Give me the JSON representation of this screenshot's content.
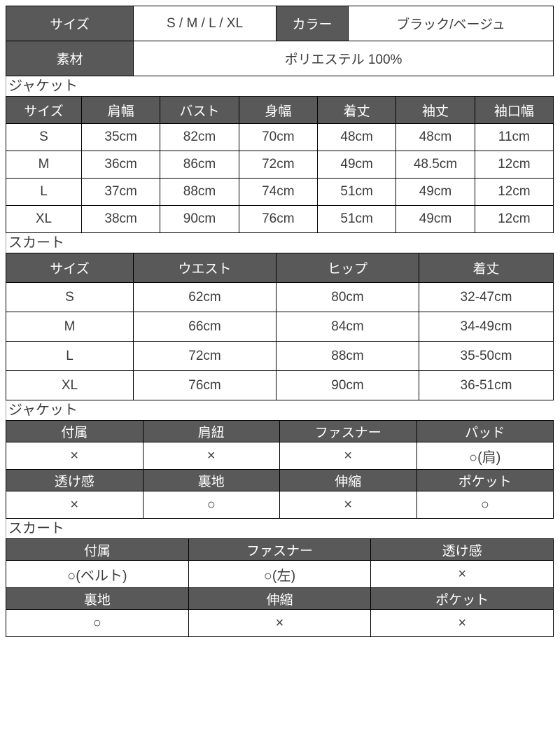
{
  "colors": {
    "header_bg": "#595959",
    "header_text": "#ffffff",
    "body_text": "#3c3c3c",
    "border": "#000000",
    "section_label_text": "#3c3c3c"
  },
  "info_table": {
    "rows": [
      [
        {
          "t": "サイズ",
          "h": true
        },
        {
          "t": "S / M / L / XL"
        },
        {
          "t": "カラー",
          "h": true
        },
        {
          "t": "ブラック/ベージュ"
        }
      ],
      [
        {
          "t": "素材",
          "h": true
        },
        {
          "t": "ポリエステル 100%",
          "cs": 3
        }
      ]
    ]
  },
  "sections": {
    "jacket_size": {
      "label": "ジャケット",
      "rows": [
        [
          {
            "t": "サイズ",
            "h": true
          },
          {
            "t": "肩幅",
            "h": true
          },
          {
            "t": "バスト",
            "h": true
          },
          {
            "t": "身幅",
            "h": true
          },
          {
            "t": "着丈",
            "h": true
          },
          {
            "t": "袖丈",
            "h": true
          },
          {
            "t": "袖口幅",
            "h": true
          }
        ],
        [
          {
            "t": "S"
          },
          {
            "t": "35cm"
          },
          {
            "t": "82cm"
          },
          {
            "t": "70cm"
          },
          {
            "t": "48cm"
          },
          {
            "t": "48cm"
          },
          {
            "t": "11cm"
          }
        ],
        [
          {
            "t": "M"
          },
          {
            "t": "36cm"
          },
          {
            "t": "86cm"
          },
          {
            "t": "72cm"
          },
          {
            "t": "49cm"
          },
          {
            "t": "48.5cm"
          },
          {
            "t": "12cm"
          }
        ],
        [
          {
            "t": "L"
          },
          {
            "t": "37cm"
          },
          {
            "t": "88cm"
          },
          {
            "t": "74cm"
          },
          {
            "t": "51cm"
          },
          {
            "t": "49cm"
          },
          {
            "t": "12cm"
          }
        ],
        [
          {
            "t": "XL"
          },
          {
            "t": "38cm"
          },
          {
            "t": "90cm"
          },
          {
            "t": "76cm"
          },
          {
            "t": "51cm"
          },
          {
            "t": "49cm"
          },
          {
            "t": "12cm"
          }
        ]
      ]
    },
    "skirt_size": {
      "label": "スカート",
      "rows": [
        [
          {
            "t": "サイズ",
            "h": true
          },
          {
            "t": "ウエスト",
            "h": true
          },
          {
            "t": "ヒップ",
            "h": true
          },
          {
            "t": "着丈",
            "h": true
          }
        ],
        [
          {
            "t": "S"
          },
          {
            "t": "62cm"
          },
          {
            "t": "80cm"
          },
          {
            "t": "32-47cm"
          }
        ],
        [
          {
            "t": "M"
          },
          {
            "t": "66cm"
          },
          {
            "t": "84cm"
          },
          {
            "t": "34-49cm"
          }
        ],
        [
          {
            "t": "L"
          },
          {
            "t": "72cm"
          },
          {
            "t": "88cm"
          },
          {
            "t": "35-50cm"
          }
        ],
        [
          {
            "t": "XL"
          },
          {
            "t": "76cm"
          },
          {
            "t": "90cm"
          },
          {
            "t": "36-51cm"
          }
        ]
      ]
    },
    "jacket_features": {
      "label": "ジャケット",
      "rows": [
        [
          {
            "t": "付属",
            "h": true
          },
          {
            "t": "肩紐",
            "h": true
          },
          {
            "t": "ファスナー",
            "h": true
          },
          {
            "t": "パッド",
            "h": true
          }
        ],
        [
          {
            "t": "×"
          },
          {
            "t": "×"
          },
          {
            "t": "×"
          },
          {
            "t": "○(肩)"
          }
        ],
        [
          {
            "t": "透け感",
            "h": true
          },
          {
            "t": "裏地",
            "h": true
          },
          {
            "t": "伸縮",
            "h": true
          },
          {
            "t": "ポケット",
            "h": true
          }
        ],
        [
          {
            "t": "×"
          },
          {
            "t": "○"
          },
          {
            "t": "×"
          },
          {
            "t": "○"
          }
        ]
      ]
    },
    "skirt_features": {
      "label": "スカート",
      "rows": [
        [
          {
            "t": "付属",
            "h": true
          },
          {
            "t": "ファスナー",
            "h": true
          },
          {
            "t": "透け感",
            "h": true
          }
        ],
        [
          {
            "t": "○(ベルト)"
          },
          {
            "t": "○(左)"
          },
          {
            "t": "×"
          }
        ],
        [
          {
            "t": "裏地",
            "h": true
          },
          {
            "t": "伸縮",
            "h": true
          },
          {
            "t": "ポケット",
            "h": true
          }
        ],
        [
          {
            "t": "○"
          },
          {
            "t": "×"
          },
          {
            "t": "×"
          }
        ]
      ]
    }
  }
}
